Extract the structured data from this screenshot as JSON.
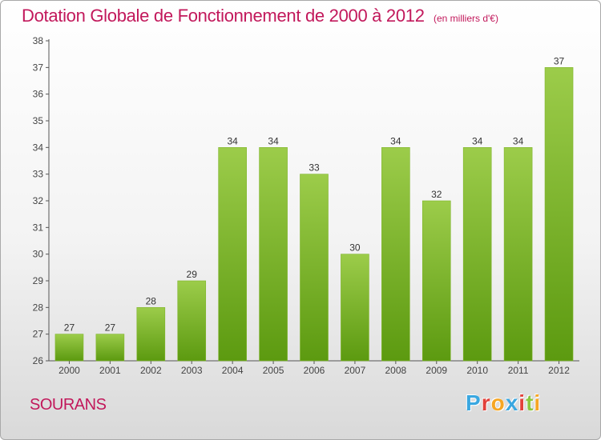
{
  "title": "Dotation Globale de Fonctionnement de 2000 à 2012",
  "subtitle": "(en milliers d'€)",
  "commune": "SOURANS",
  "logo": {
    "letters": [
      "P",
      "r",
      "o",
      "x",
      "i",
      "t",
      "i"
    ],
    "colors": [
      "#3aa7e0",
      "#e2403a",
      "#f6a623",
      "#3aa7e0",
      "#e2403a",
      "#8cc63f",
      "#f6a623"
    ]
  },
  "chart_data": {
    "type": "bar",
    "categories": [
      "2000",
      "2001",
      "2002",
      "2003",
      "2004",
      "2005",
      "2006",
      "2007",
      "2008",
      "2009",
      "2010",
      "2011",
      "2012"
    ],
    "values": [
      27,
      27,
      28,
      29,
      34,
      34,
      33,
      30,
      34,
      32,
      34,
      34,
      37
    ],
    "ylim": [
      26,
      38
    ],
    "yticks": [
      26,
      27,
      28,
      29,
      30,
      31,
      32,
      33,
      34,
      35,
      36,
      37,
      38
    ],
    "grid": false,
    "bar_color_top": "#9ccc4a",
    "bar_color_bottom": "#5c9a10",
    "label_color": "#333333"
  }
}
